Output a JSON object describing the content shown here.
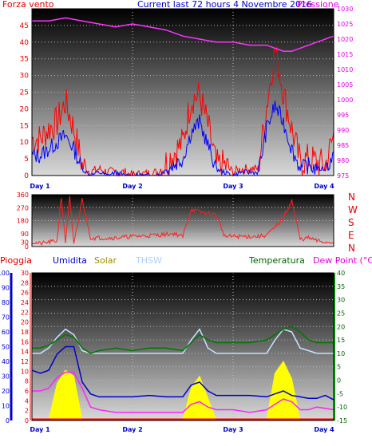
{
  "top": {
    "title": "Current last 72 hours 4 Novembre 2016",
    "left_label": "Forza vento",
    "right_label": "Pressione"
  },
  "day_labels": [
    "Day 1",
    "Day 2",
    "Day 3",
    "Day 4"
  ],
  "wind_dir_letters": [
    "N",
    "W",
    "S",
    "E",
    "N"
  ],
  "legend_bottom": [
    {
      "text": "Pioggia",
      "color": "#e00000"
    },
    {
      "text": "Umidita",
      "color": "#0000cc"
    },
    {
      "text": "Solar",
      "color": "#a08c00"
    },
    {
      "text": "THSW",
      "color": "#b0d0ff"
    },
    {
      "text": "Temperatura",
      "color": "#006600"
    },
    {
      "text": "Dew Point (°C)",
      "color": "#e000e0"
    }
  ],
  "colors": {
    "wind_gust": "#ff0000",
    "wind_avg": "#0000ff",
    "pressure": "#ff33ff",
    "direction": "#ff2020",
    "humidity": "#0000cc",
    "solar": "#ffff00",
    "thsw": "#c8e4ff",
    "temperature": "#007700",
    "dew_point": "#ff22ff",
    "rain": "#ff0000"
  },
  "chart_data": [
    {
      "type": "line",
      "title": "Current last 72 hours 4 Novembre 2016",
      "x_unit": "hours",
      "xlim": [
        0,
        72
      ],
      "day_ticks_hours": [
        0,
        24,
        48,
        72
      ],
      "left_axis": {
        "label": "Forza vento",
        "ylim": [
          0,
          50
        ],
        "ticks": [
          0,
          5,
          10,
          15,
          20,
          25,
          30,
          35,
          40,
          45
        ]
      },
      "right_axis": {
        "label": "Pressione",
        "ylim": [
          975,
          1030
        ],
        "ticks": [
          975,
          980,
          985,
          990,
          995,
          1000,
          1005,
          1010,
          1015,
          1020,
          1025,
          1030
        ]
      },
      "series": [
        {
          "key": "gust",
          "axis": "left",
          "x": [
            0,
            2,
            4,
            6,
            8,
            10,
            12,
            14,
            16,
            18,
            20,
            22,
            24,
            30,
            36,
            38,
            40,
            42,
            44,
            46,
            48,
            50,
            54,
            56,
            58,
            60,
            62,
            64,
            66,
            68,
            70,
            72
          ],
          "values": [
            11,
            11,
            14,
            16,
            22,
            14,
            3,
            1,
            2,
            1,
            1,
            1,
            0,
            1,
            10,
            23,
            24,
            15,
            3,
            3,
            1,
            2,
            2,
            21,
            38,
            25,
            14,
            4,
            5,
            4,
            3,
            12
          ]
        },
        {
          "key": "avg",
          "axis": "left",
          "x": [
            0,
            2,
            4,
            6,
            8,
            10,
            12,
            14,
            16,
            18,
            20,
            22,
            24,
            30,
            36,
            38,
            40,
            42,
            44,
            46,
            48,
            50,
            54,
            56,
            58,
            60,
            62,
            64,
            66,
            68,
            70,
            72
          ],
          "values": [
            6,
            6,
            8,
            10,
            12,
            8,
            2,
            0,
            1,
            0,
            1,
            0,
            0,
            0,
            5,
            13,
            16,
            9,
            2,
            1,
            0,
            1,
            1,
            14,
            21,
            16,
            8,
            2,
            3,
            2,
            2,
            6
          ]
        },
        {
          "key": "pressure",
          "axis": "right",
          "x": [
            0,
            4,
            8,
            12,
            16,
            20,
            24,
            28,
            32,
            36,
            40,
            44,
            48,
            52,
            56,
            60,
            62,
            64,
            68,
            72
          ],
          "values": [
            1026,
            1026,
            1027,
            1026,
            1025,
            1024,
            1025,
            1024,
            1023,
            1021,
            1020,
            1019,
            1019,
            1018,
            1018,
            1016,
            1016,
            1017,
            1019,
            1021
          ]
        }
      ]
    },
    {
      "type": "line",
      "title": "",
      "xlim": [
        0,
        72
      ],
      "left_axis": {
        "ylim": [
          0,
          360
        ],
        "ticks": [
          0,
          30,
          90,
          180,
          270,
          360
        ]
      },
      "right_axis": {
        "labels": [
          "N",
          "W",
          "S",
          "E",
          "N"
        ]
      },
      "series": [
        {
          "key": "direction",
          "x": [
            0,
            2,
            4,
            6,
            7,
            8,
            9,
            10,
            12,
            14,
            16,
            20,
            24,
            30,
            34,
            36,
            38,
            40,
            42,
            44,
            46,
            48,
            50,
            54,
            56,
            58,
            60,
            62,
            64,
            66,
            68,
            70,
            72
          ],
          "values": [
            30,
            20,
            30,
            40,
            350,
            30,
            340,
            10,
            330,
            60,
            60,
            60,
            70,
            80,
            90,
            70,
            260,
            240,
            230,
            220,
            70,
            70,
            70,
            70,
            80,
            130,
            200,
            320,
            50,
            60,
            40,
            30,
            30
          ]
        }
      ]
    },
    {
      "type": "line",
      "title": "",
      "xlim": [
        0,
        72
      ],
      "left_axis": {
        "ylim": [
          0,
          100
        ],
        "ticks": [
          0,
          10,
          20,
          30,
          40,
          50,
          60,
          70,
          80,
          90,
          100
        ]
      },
      "inner_axis": {
        "ylim": [
          0,
          30
        ],
        "ticks": [
          0,
          2,
          4,
          6,
          8,
          10,
          12,
          14,
          16,
          18,
          20,
          22,
          24,
          26,
          28,
          30
        ]
      },
      "right_axis": {
        "ylim": [
          -15,
          40
        ],
        "ticks": [
          -15,
          -10,
          -5,
          0,
          5,
          10,
          15,
          20,
          25,
          30,
          35,
          40
        ]
      },
      "series": [
        {
          "key": "humidity",
          "axis": "left",
          "x": [
            0,
            2,
            4,
            6,
            8,
            10,
            12,
            14,
            16,
            18,
            20,
            24,
            28,
            32,
            36,
            38,
            40,
            42,
            44,
            46,
            48,
            52,
            56,
            58,
            60,
            62,
            64,
            66,
            68,
            70,
            72
          ],
          "values": [
            34,
            32,
            34,
            45,
            50,
            50,
            26,
            18,
            16,
            16,
            16,
            16,
            17,
            16,
            16,
            24,
            26,
            20,
            17,
            17,
            17,
            17,
            16,
            18,
            20,
            17,
            16,
            15,
            15,
            17,
            14
          ]
        },
        {
          "key": "solar",
          "axis": "left",
          "x": [
            0,
            4,
            6,
            8,
            10,
            12,
            14,
            36,
            38,
            40,
            42,
            44,
            56,
            58,
            60,
            62,
            64,
            66
          ],
          "values": [
            0,
            0,
            25,
            34,
            30,
            0,
            0,
            0,
            22,
            30,
            15,
            0,
            0,
            32,
            40,
            28,
            0,
            0
          ]
        },
        {
          "key": "thsw",
          "axis": "right",
          "x": [
            0,
            2,
            4,
            6,
            8,
            10,
            12,
            14,
            16,
            20,
            24,
            28,
            32,
            36,
            38,
            40,
            42,
            44,
            48,
            52,
            56,
            58,
            60,
            62,
            64,
            66,
            68,
            72
          ],
          "values": [
            10,
            10,
            12,
            16,
            19,
            17,
            11,
            10,
            10,
            10,
            10,
            10,
            10,
            10,
            15,
            19,
            12,
            10,
            10,
            10,
            10,
            15,
            19,
            18,
            12,
            11,
            10,
            10
          ]
        },
        {
          "key": "temperature",
          "axis": "right",
          "x": [
            0,
            2,
            4,
            6,
            8,
            10,
            12,
            14,
            16,
            20,
            24,
            28,
            32,
            36,
            38,
            40,
            42,
            44,
            48,
            52,
            56,
            58,
            60,
            62,
            64,
            66,
            68,
            72
          ],
          "values": [
            12,
            12,
            13,
            15,
            17,
            16,
            12,
            10,
            11,
            12,
            11,
            12,
            12,
            11,
            14,
            17,
            15,
            14,
            14,
            14,
            15,
            17,
            19,
            20,
            18,
            15,
            14,
            14
          ]
        },
        {
          "key": "dew_point",
          "axis": "right",
          "x": [
            0,
            2,
            4,
            6,
            8,
            10,
            12,
            14,
            16,
            20,
            24,
            28,
            32,
            36,
            38,
            40,
            42,
            44,
            48,
            52,
            56,
            58,
            60,
            62,
            64,
            66,
            68,
            72
          ],
          "values": [
            -4,
            -4,
            -3,
            1,
            3,
            3,
            -3,
            -10,
            -11,
            -12,
            -12,
            -12,
            -12,
            -12,
            -9,
            -8,
            -10,
            -11,
            -11,
            -12,
            -11,
            -9,
            -7,
            -8,
            -11,
            -11,
            -10,
            -11
          ]
        },
        {
          "key": "rain",
          "axis": "left",
          "x": [
            0,
            72
          ],
          "values": [
            0,
            0
          ]
        }
      ]
    }
  ]
}
